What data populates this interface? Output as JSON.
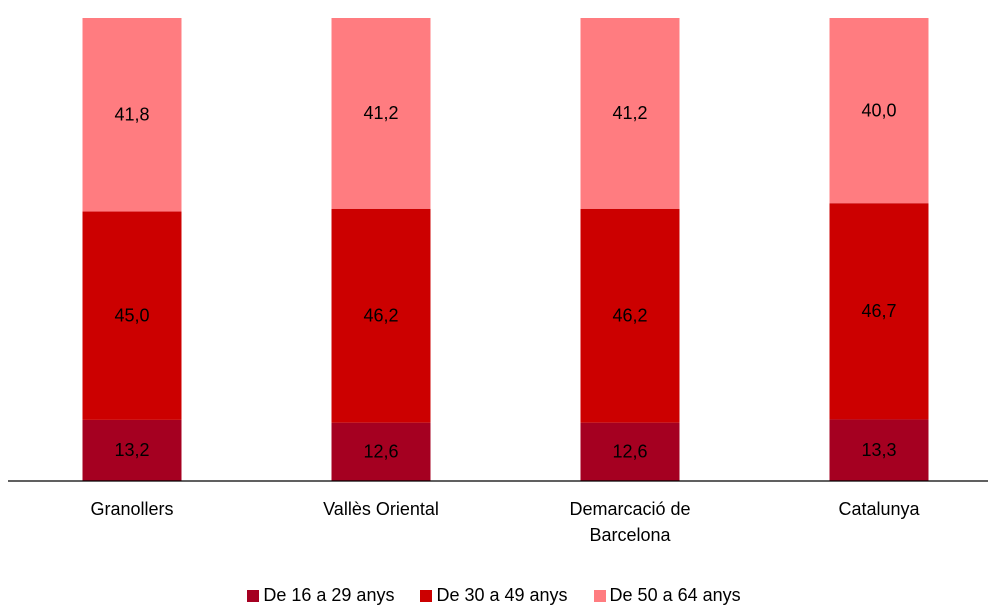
{
  "chart_data": {
    "type": "stacked_bar",
    "categories": [
      "Granollers",
      "Vallès Oriental",
      "Demarcació de Barcelona",
      "Catalunya"
    ],
    "series": [
      {
        "name": "De 16 a 29 anys",
        "color": "#a50021",
        "values": [
          13.2,
          12.6,
          12.6,
          13.3
        ],
        "value_labels": [
          "13,2",
          "12,6",
          "12,6",
          "13,3"
        ]
      },
      {
        "name": "De 30 a 49 anys",
        "color": "#cc0000",
        "values": [
          45.0,
          46.2,
          46.2,
          46.7
        ],
        "value_labels": [
          "45,0",
          "46,2",
          "46,2",
          "46,7"
        ]
      },
      {
        "name": "De 50 a 64 anys",
        "color": "#ff7c80",
        "values": [
          41.8,
          41.2,
          41.2,
          40.0
        ],
        "value_labels": [
          "41,8",
          "41,2",
          "41,2",
          "40,0"
        ]
      }
    ],
    "legend": "bottom"
  }
}
